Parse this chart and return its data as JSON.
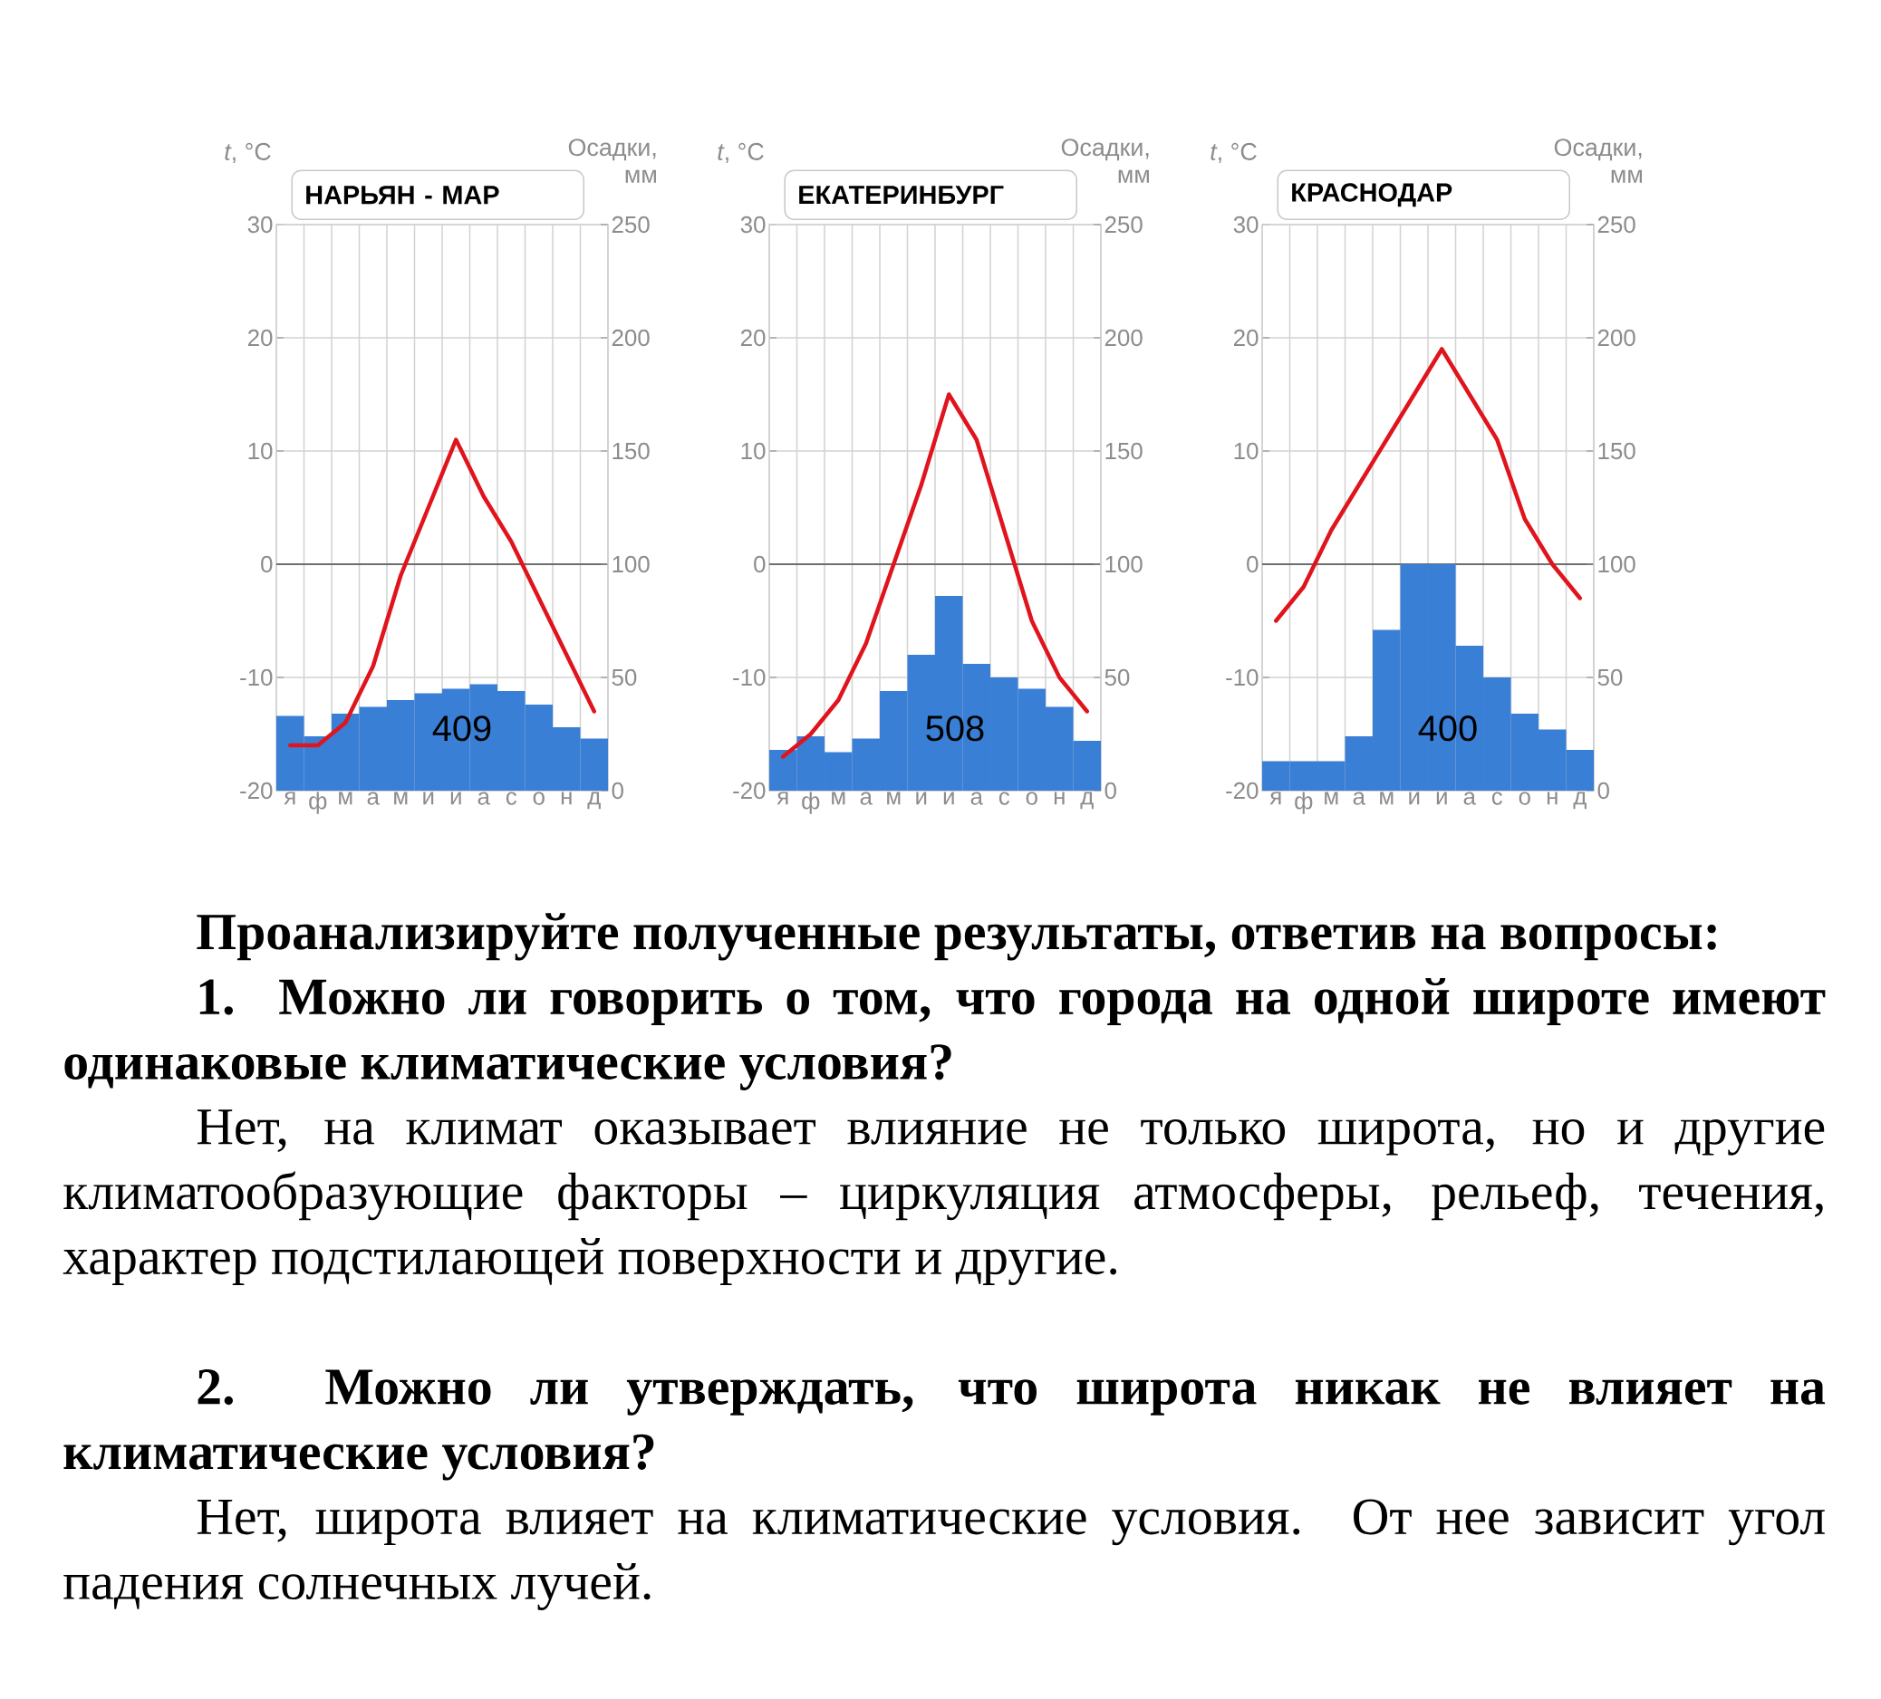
{
  "chart_data": [
    {
      "type": "bar",
      "title": "НАРЬЯН - МАР",
      "ylabel": "*t*, °C",
      "y2label": "Осадки, мм",
      "categories": [
        "я",
        "ф",
        "м",
        "а",
        "м",
        "и",
        "и",
        "а",
        "с",
        "о",
        "н",
        "д"
      ],
      "series": [
        {
          "type": "bar",
          "axis": "y2",
          "color": "#3a7fd6",
          "values": [
            33,
            24,
            34,
            37,
            40,
            43,
            45,
            47,
            44,
            38,
            28,
            23
          ]
        },
        {
          "type": "line",
          "color": "#e0141c",
          "values": [
            -16,
            -16,
            -14,
            -9,
            -1,
            5,
            11,
            6,
            2,
            -3,
            -8,
            -13
          ]
        }
      ],
      "ylim": [
        -20,
        30
      ],
      "yticks": [
        -20,
        -10,
        0,
        10,
        20,
        30
      ],
      "y2lim": [
        0,
        250
      ],
      "y2ticks": [
        0,
        50,
        100,
        150,
        200,
        250
      ],
      "grid": true,
      "ref_lines": [
        {
          "axis": "y",
          "value": 0,
          "color": "#6e6e6e"
        }
      ],
      "annotations": [
        "409"
      ]
    },
    {
      "type": "bar",
      "title": "ЕКАТЕРИНБУРГ",
      "ylabel": "*t*, °C",
      "y2label": "Осадки, мм",
      "categories": [
        "я",
        "ф",
        "м",
        "а",
        "м",
        "и",
        "и",
        "а",
        "с",
        "о",
        "н",
        "д"
      ],
      "series": [
        {
          "type": "bar",
          "axis": "y2",
          "color": "#3a7fd6",
          "values": [
            18,
            24,
            17,
            23,
            44,
            60,
            86,
            56,
            50,
            45,
            37,
            22
          ]
        },
        {
          "type": "line",
          "color": "#e0141c",
          "values": [
            -17,
            -15,
            -12,
            -7,
            0,
            7,
            15,
            11,
            3,
            -5,
            -10,
            -13
          ]
        }
      ],
      "ylim": [
        -20,
        30
      ],
      "yticks": [
        -20,
        -10,
        0,
        10,
        20,
        30
      ],
      "y2lim": [
        0,
        250
      ],
      "y2ticks": [
        0,
        50,
        100,
        150,
        200,
        250
      ],
      "grid": true,
      "ref_lines": [
        {
          "axis": "y",
          "value": 0,
          "color": "#6e6e6e"
        }
      ],
      "annotations": [
        "508"
      ]
    },
    {
      "type": "bar",
      "title": "КРАСНОДАР",
      "ylabel": "*t*, °C",
      "y2label": "Осадки, мм",
      "categories": [
        "я",
        "ф",
        "м",
        "а",
        "м",
        "и",
        "и",
        "а",
        "с",
        "о",
        "н",
        "д"
      ],
      "series": [
        {
          "type": "bar",
          "axis": "y2",
          "color": "#3a7fd6",
          "values": [
            13,
            13,
            13,
            24,
            71,
            100,
            100,
            64,
            50,
            34,
            27,
            18
          ]
        },
        {
          "type": "line",
          "color": "#e0141c",
          "values": [
            -5,
            -2,
            3,
            7,
            11,
            15,
            19,
            15,
            11,
            4,
            0,
            -3
          ]
        }
      ],
      "ylim": [
        -20,
        30
      ],
      "yticks": [
        -20,
        -10,
        0,
        10,
        20,
        30
      ],
      "y2lim": [
        0,
        250
      ],
      "y2ticks": [
        0,
        50,
        100,
        150,
        200,
        250
      ],
      "grid": true,
      "ref_lines": [
        {
          "axis": "y",
          "value": 0,
          "color": "#6e6e6e"
        }
      ],
      "annotations": [
        "400"
      ]
    },
    {
      "type": "other",
      "title": "Проанализируйте полученные результаты, ответив на вопросы:",
      "annotations": [
        "**1. Можно ли говорить о том, что города на одной широте имеют одинаковые климатические условия?**",
        "Нет, на климат оказывает влияние не только широта, но и другие климатообразующие факторы – циркуляция атмосферы, рельеф, течения, характер подстилающей поверхности и другие.",
        "**2. Можно ли утверждать, что широта никак не влияет на климатические условия?**",
        "Нет, широта влияет на климатические условия. От нее зависит угол падения солнечных лучей."
      ]
    }
  ]
}
